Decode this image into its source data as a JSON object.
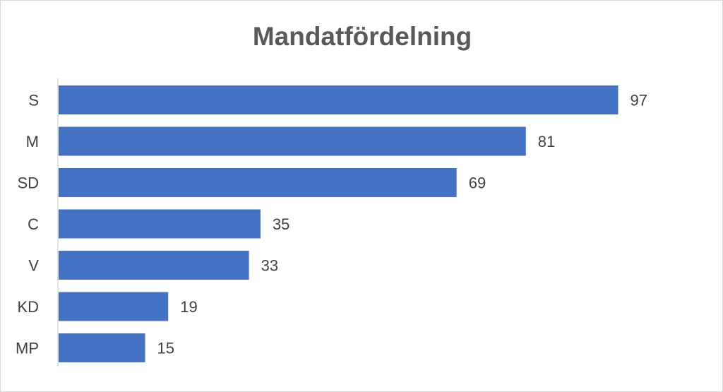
{
  "chart_data": {
    "type": "bar",
    "orientation": "horizontal",
    "title": "Mandatfördelning",
    "categories": [
      "S",
      "M",
      "SD",
      "C",
      "V",
      "KD",
      "MP"
    ],
    "values": [
      97,
      81,
      69,
      35,
      33,
      19,
      15
    ],
    "xlabel": "",
    "ylabel": "",
    "xlim": [
      0,
      100
    ],
    "grid": false,
    "legend": "none",
    "data_labels": true,
    "bar_color": "#4472c4",
    "axis_color": "#d9d9d9",
    "text_color": "#404040",
    "title_color": "#595959"
  }
}
